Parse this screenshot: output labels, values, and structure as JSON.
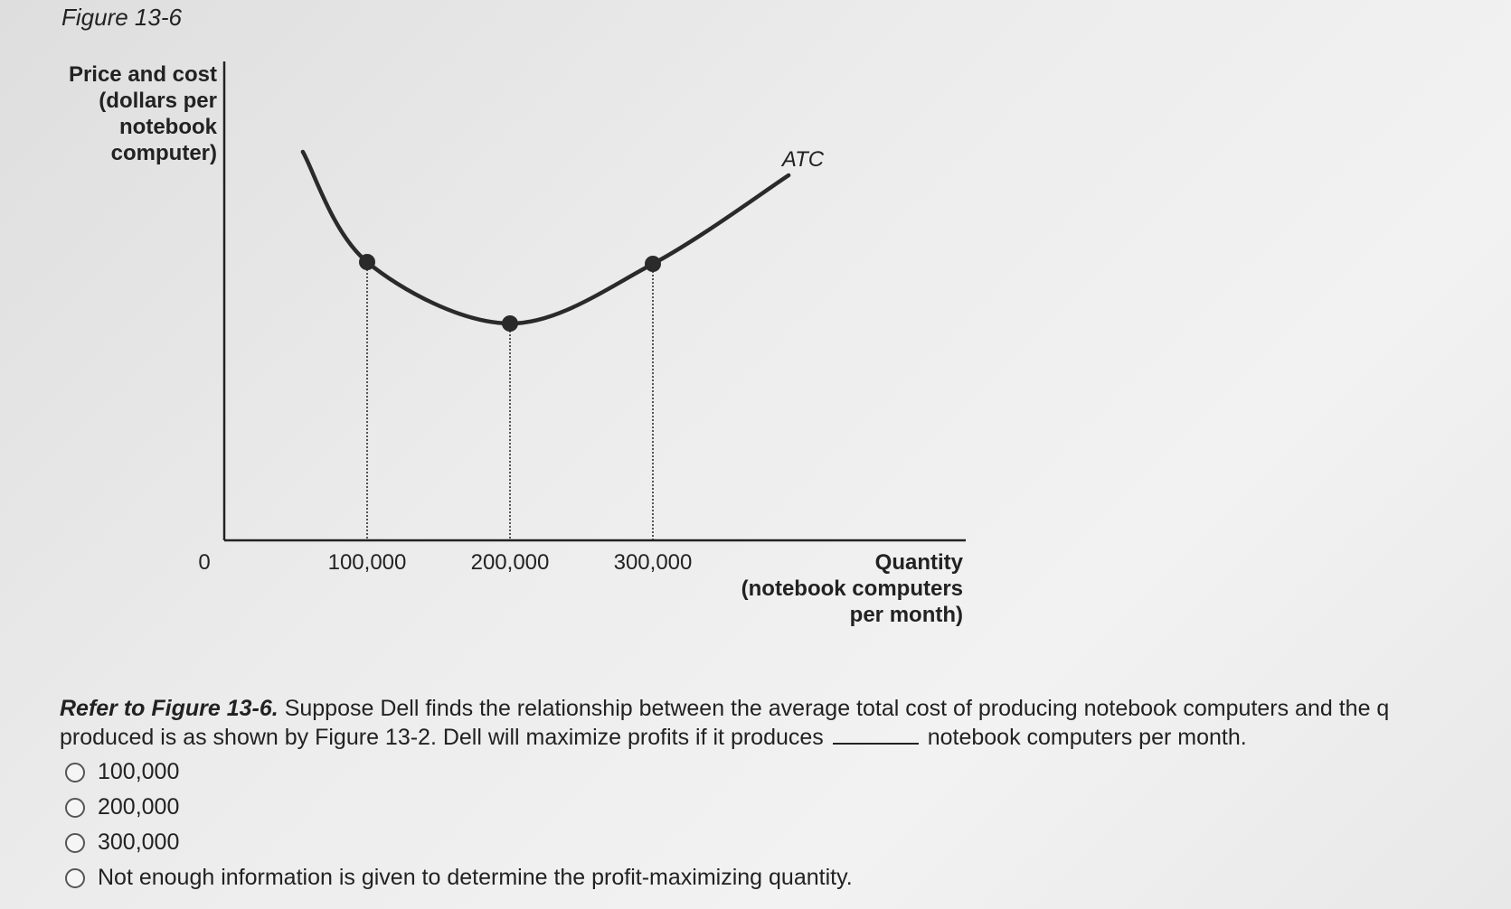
{
  "figure_title": "Figure 13-6",
  "chart_data": {
    "type": "line",
    "ylabel": "Price and cost\n(dollars per\nnotebook\ncomputer)",
    "xlabel": "Quantity\n(notebook computers\nper month)",
    "x_ticks": [
      "0",
      "100,000",
      "200,000",
      "300,000"
    ],
    "xlim": [
      0,
      420000
    ],
    "series": [
      {
        "name": "ATC",
        "x": [
          55000,
          100000,
          200000,
          300000,
          395000
        ],
        "marked_points": [
          100000,
          200000,
          300000
        ]
      }
    ],
    "dropline_style": "dotted"
  },
  "question": {
    "ref": "Refer to Figure 13-6.",
    "line1": "Suppose Dell finds the relationship between the average total cost of producing notebook computers and the q",
    "line2_start": "produced is as shown by Figure 13-2. Dell will maximize profits if it produces",
    "line2_end": "notebook computers per month."
  },
  "options": [
    {
      "label": "100,000"
    },
    {
      "label": "200,000"
    },
    {
      "label": "300,000"
    },
    {
      "label": "Not enough information is given to determine the profit-maximizing quantity."
    }
  ]
}
